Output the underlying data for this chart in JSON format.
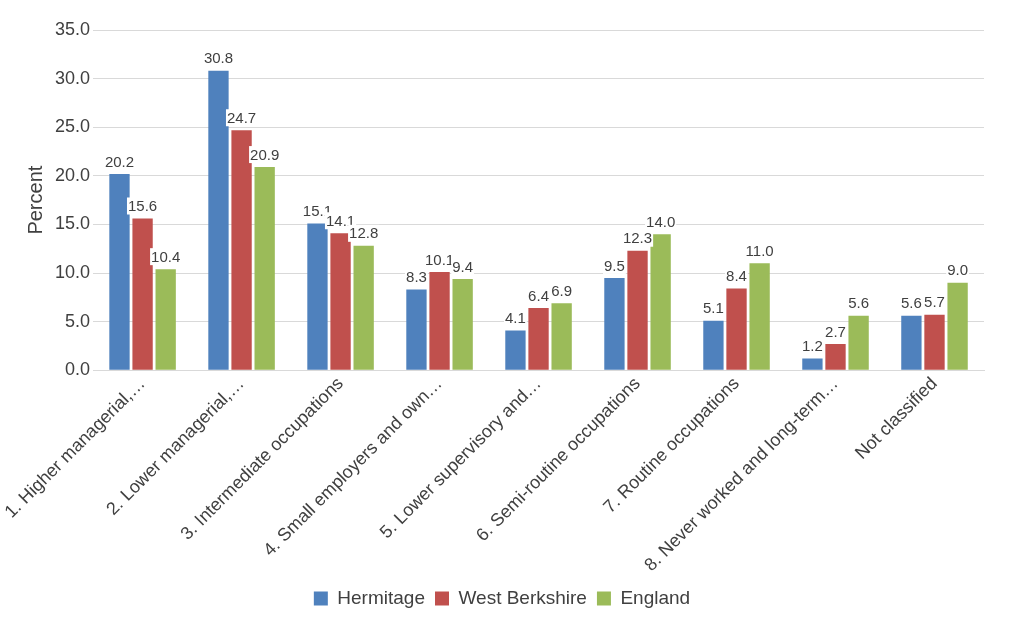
{
  "chart_data": {
    "type": "bar",
    "ylabel": "Percent",
    "categories": [
      "1. Higher managerial,…",
      "2. Lower managerial,…",
      "3. Intermediate occupations",
      "4. Small employers and own…",
      "5. Lower supervisory and…",
      "6. Semi-routine occupations",
      "7. Routine occupations",
      "8. Never worked and long-term…",
      "Not classified"
    ],
    "series": [
      {
        "name": "Hermitage",
        "color": "#4f81bd",
        "values": [
          20.2,
          30.8,
          15.1,
          8.3,
          4.1,
          9.5,
          5.1,
          1.2,
          5.6
        ],
        "value_labels": [
          "20.2",
          "30.8",
          "15.1",
          "8.3",
          "4.1",
          "9.5",
          "5.1",
          "1.2",
          "5.6"
        ]
      },
      {
        "name": "West Berkshire",
        "color": "#c0504d",
        "values": [
          15.6,
          24.7,
          14.1,
          10.1,
          6.4,
          12.3,
          8.4,
          2.7,
          5.7
        ],
        "value_labels": [
          "15.6",
          "24.7",
          "14.1",
          "10.1",
          "6.4",
          "12.3",
          "8.4",
          "2.7",
          "5.7"
        ]
      },
      {
        "name": "England",
        "color": "#9bbb59",
        "values": [
          10.4,
          20.9,
          12.8,
          9.4,
          6.9,
          14.0,
          11.0,
          5.6,
          9.0
        ],
        "value_labels": [
          "10.4",
          "20.9",
          "12.8",
          "9.4",
          "6.9",
          "14.0",
          "11.0",
          "5.6",
          "9.0"
        ]
      }
    ],
    "ylim": [
      0,
      35
    ],
    "yticks": [
      {
        "value": 0,
        "label": "0.0"
      },
      {
        "value": 5,
        "label": "5.0"
      },
      {
        "value": 10,
        "label": "10.0"
      },
      {
        "value": 15,
        "label": "15.0"
      },
      {
        "value": 20,
        "label": "20.0"
      },
      {
        "value": 25,
        "label": "25.0"
      },
      {
        "value": 30,
        "label": "30.0"
      },
      {
        "value": 35,
        "label": "35.0"
      }
    ],
    "grid": "y",
    "legend": "bottom"
  }
}
